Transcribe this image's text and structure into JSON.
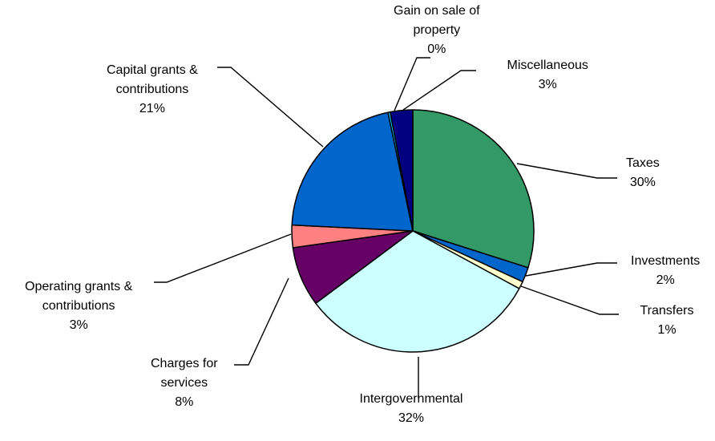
{
  "chart_data": {
    "type": "pie",
    "title": "",
    "start_angle_deg": 0,
    "direction": "clockwise",
    "slices": [
      {
        "name": "Taxes",
        "value": 30,
        "label_name": [
          "Taxes"
        ],
        "label_pct": "30%",
        "color": "#339966"
      },
      {
        "name": "Investments",
        "value": 2,
        "label_name": [
          "Investments"
        ],
        "label_pct": "2%",
        "color": "#0066cc"
      },
      {
        "name": "Transfers",
        "value": 1,
        "label_name": [
          "Transfers"
        ],
        "label_pct": "1%",
        "color": "#ffffcc"
      },
      {
        "name": "Intergovernmental",
        "value": 32,
        "label_name": [
          "Intergovernmental"
        ],
        "label_pct": "32%",
        "color": "#ccffff"
      },
      {
        "name": "Charges for services",
        "value": 8,
        "label_name": [
          "Charges for",
          "services"
        ],
        "label_pct": "8%",
        "color": "#660066"
      },
      {
        "name": "Operating grants & contributions",
        "value": 3,
        "label_name": [
          "Operating grants &",
          "contributions"
        ],
        "label_pct": "3%",
        "color": "#ff8080"
      },
      {
        "name": "Capital grants & contributions",
        "value": 21,
        "label_name": [
          "Capital grants &",
          "contributions"
        ],
        "label_pct": "21%",
        "color": "#0066cc"
      },
      {
        "name": "Gain on sale of property",
        "value": 0.3,
        "label_name": [
          "Gain on sale of",
          "property"
        ],
        "label_pct": "0%",
        "color": "#00ccff"
      },
      {
        "name": "Miscellaneous",
        "value": 3,
        "label_name": [
          "Miscellaneous"
        ],
        "label_pct": "3%",
        "color": "#000080"
      }
    ]
  }
}
